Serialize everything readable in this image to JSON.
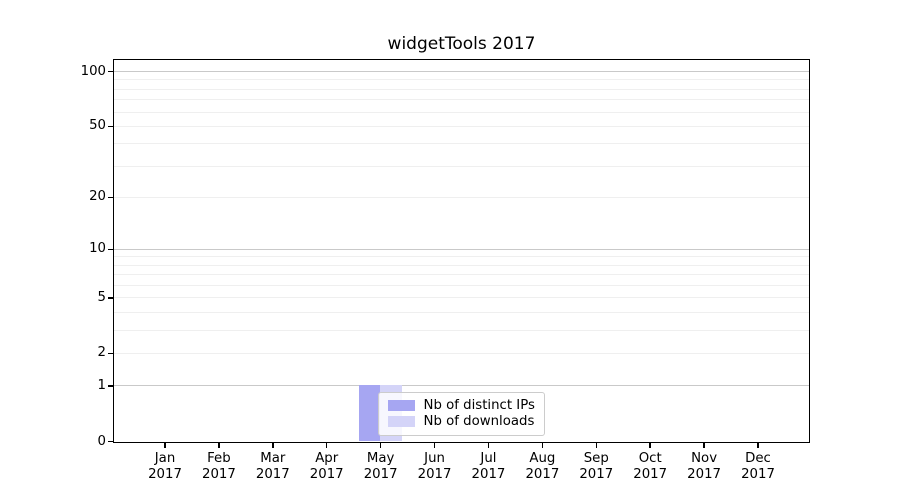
{
  "chart_data": {
    "type": "bar",
    "title": "widgetTools 2017",
    "categories": [
      {
        "month": "Jan",
        "year": "2017"
      },
      {
        "month": "Feb",
        "year": "2017"
      },
      {
        "month": "Mar",
        "year": "2017"
      },
      {
        "month": "Apr",
        "year": "2017"
      },
      {
        "month": "May",
        "year": "2017"
      },
      {
        "month": "Jun",
        "year": "2017"
      },
      {
        "month": "Jul",
        "year": "2017"
      },
      {
        "month": "Aug",
        "year": "2017"
      },
      {
        "month": "Sep",
        "year": "2017"
      },
      {
        "month": "Oct",
        "year": "2017"
      },
      {
        "month": "Nov",
        "year": "2017"
      },
      {
        "month": "Dec",
        "year": "2017"
      }
    ],
    "series": [
      {
        "name": "Nb of distinct IPs",
        "color": "#a6a6f2",
        "values": [
          0,
          0,
          0,
          0,
          1,
          0,
          0,
          0,
          0,
          0,
          0,
          0
        ]
      },
      {
        "name": "Nb of downloads",
        "color": "#d4d4f8",
        "values": [
          0,
          0,
          0,
          0,
          1,
          0,
          0,
          0,
          0,
          0,
          0,
          0
        ]
      }
    ],
    "yscale": "log1p",
    "ylim": [
      0,
      115
    ],
    "yticks_labeled": [
      100,
      50,
      20,
      10,
      5,
      2,
      1,
      0
    ],
    "gridlines_decade": [
      1,
      10,
      100
    ],
    "gridlines_minor": [
      2,
      3,
      4,
      5,
      6,
      7,
      8,
      9,
      20,
      30,
      40,
      50,
      60,
      70,
      80,
      90
    ],
    "grid": "horizontal",
    "legend_position": "inside-bottom-center-left",
    "colors": {
      "spine": "#000000",
      "gridline_decade": "#c9c9c9",
      "gridline_minor": "#efefef",
      "legend_border": "#cccccc",
      "text": "#000000",
      "background": "#ffffff"
    }
  }
}
